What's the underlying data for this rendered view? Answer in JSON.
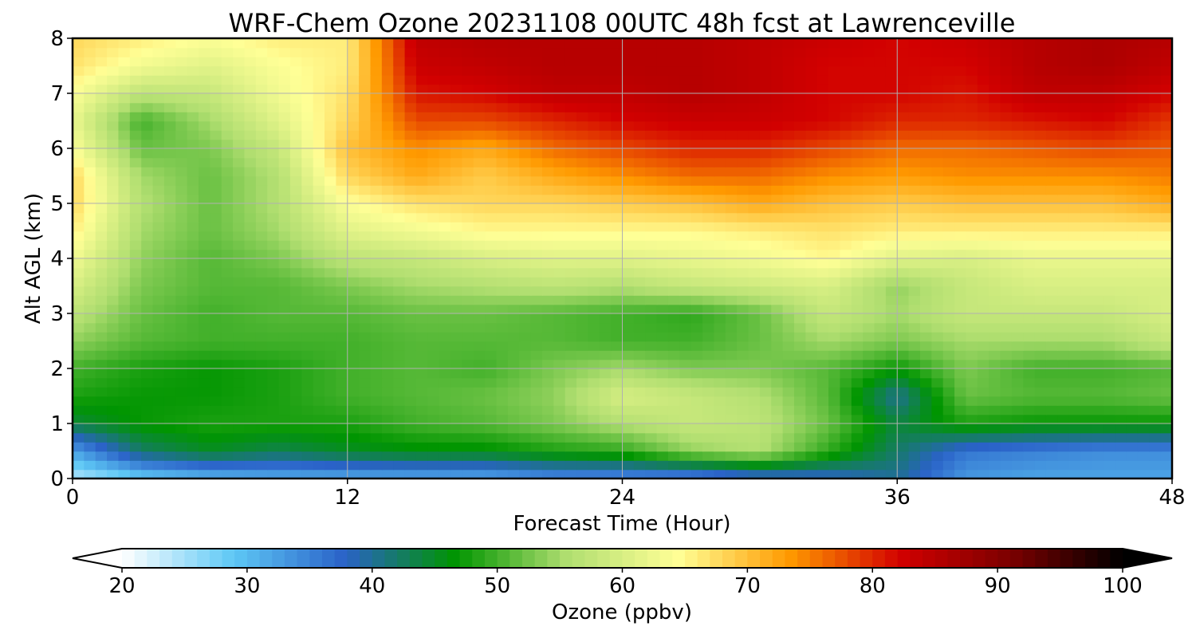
{
  "chart_data": {
    "type": "heatmap",
    "title": "WRF-Chem Ozone  20231108 00UTC 48h fcst at Lawrenceville",
    "xlabel": "Forecast Time (Hour)",
    "ylabel": "Alt AGL (km)",
    "xlim": [
      0,
      48
    ],
    "ylim": [
      0,
      8
    ],
    "xticks": [
      0,
      12,
      24,
      36,
      48
    ],
    "yticks": [
      0,
      1,
      2,
      3,
      4,
      5,
      6,
      7,
      8
    ],
    "grid": true,
    "colorbar": {
      "label": "Ozone  (ppbv)",
      "min": 20,
      "max": 100,
      "ticks": [
        20,
        30,
        40,
        50,
        60,
        70,
        80,
        90,
        100
      ],
      "extend": "both",
      "orientation": "horizontal",
      "colors": [
        "#ffffff",
        "#5ec8f5",
        "#2a62c8",
        "#009500",
        "#b0de70",
        "#ffff96",
        "#ff9a00",
        "#d20000",
        "#7a0000",
        "#000000"
      ]
    },
    "x": [
      0,
      3,
      6,
      9,
      12,
      15,
      18,
      21,
      24,
      27,
      30,
      33,
      36,
      39,
      42,
      45,
      48
    ],
    "y": [
      0,
      0.5,
      1,
      1.5,
      2,
      2.5,
      3,
      3.5,
      4,
      4.5,
      5,
      5.5,
      6,
      6.5,
      7,
      7.5,
      8
    ],
    "z": [
      [
        24,
        28,
        30,
        31,
        31,
        31,
        31,
        33,
        33,
        33,
        36,
        37,
        40,
        33,
        32,
        32,
        32
      ],
      [
        32,
        42,
        45,
        43,
        45,
        46,
        46,
        48,
        49,
        54,
        56,
        49,
        42,
        36,
        35,
        34,
        34
      ],
      [
        44,
        47,
        48,
        48,
        48,
        50,
        51,
        53,
        56,
        58,
        57,
        52,
        44,
        48,
        47,
        47,
        47
      ],
      [
        48,
        47,
        47,
        48,
        50,
        51,
        52,
        54,
        60,
        58,
        56,
        51,
        40,
        52,
        51,
        51,
        52
      ],
      [
        50,
        48,
        47,
        48,
        50,
        51,
        50,
        53,
        55,
        53,
        53,
        51,
        47,
        53,
        50,
        50,
        51
      ],
      [
        54,
        51,
        50,
        50,
        50,
        51,
        51,
        51,
        50,
        50,
        52,
        55,
        53,
        55,
        55,
        55,
        58
      ],
      [
        57,
        52,
        50,
        51,
        51,
        52,
        52,
        51,
        50,
        49,
        52,
        58,
        55,
        58,
        58,
        58,
        60
      ],
      [
        60,
        53,
        51,
        51,
        53,
        55,
        56,
        57,
        56,
        58,
        59,
        60,
        54,
        58,
        60,
        60,
        60
      ],
      [
        63,
        54,
        51,
        53,
        57,
        58,
        60,
        61,
        61,
        62,
        63,
        65,
        61,
        60,
        62,
        62,
        62
      ],
      [
        66,
        55,
        52,
        55,
        61,
        63,
        65,
        65,
        65,
        65,
        66,
        67,
        66,
        66,
        66,
        66,
        66
      ],
      [
        68,
        56,
        52,
        56,
        64,
        67,
        68,
        68,
        69,
        70,
        72,
        70,
        69,
        70,
        70,
        70,
        72
      ],
      [
        68,
        55,
        52,
        56,
        68,
        72,
        69,
        72,
        74,
        76,
        76,
        74,
        73,
        74,
        74,
        74,
        75
      ],
      [
        64,
        52,
        53,
        58,
        70,
        74,
        72,
        76,
        78,
        80,
        80,
        78,
        76,
        76,
        77,
        78,
        77
      ],
      [
        62,
        50,
        55,
        61,
        68,
        78,
        78,
        80,
        82,
        83,
        83,
        82,
        80,
        80,
        81,
        82,
        79
      ],
      [
        64,
        57,
        58,
        63,
        67,
        81,
        82,
        84,
        84,
        85,
        84,
        82,
        82,
        81,
        84,
        84,
        82
      ],
      [
        67,
        63,
        61,
        64,
        66,
        83,
        84,
        85,
        85,
        85,
        84,
        82,
        82,
        82,
        85,
        86,
        84
      ],
      [
        68,
        66,
        64,
        66,
        66,
        84,
        85,
        85,
        85,
        85,
        84,
        83,
        82,
        83,
        85,
        86,
        85
      ]
    ]
  }
}
